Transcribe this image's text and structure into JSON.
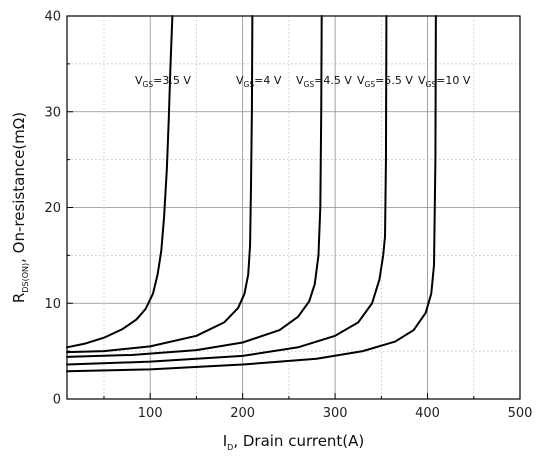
{
  "chart_data": {
    "type": "line",
    "xlabel": {
      "main": "I",
      "sub": "D",
      "rest": ", Drain current(A)"
    },
    "ylabel": {
      "main": "R",
      "sub": "DS(ON)",
      "rest": ", On-resistance(mΩ)"
    },
    "xlim": [
      10,
      500
    ],
    "ylim": [
      0,
      40
    ],
    "x_ticks": [
      100,
      200,
      300,
      400,
      500
    ],
    "x_tick_labels": [
      "100",
      "200",
      "300",
      "400",
      "500"
    ],
    "x_minor_ticks": [
      50,
      150,
      250,
      350,
      450
    ],
    "y_ticks": [
      0,
      10,
      20,
      30,
      40
    ],
    "y_tick_labels": [
      "0",
      "10",
      "20",
      "30",
      "40"
    ],
    "y_minor_ticks": [
      5,
      15,
      25,
      35
    ],
    "grid": true,
    "series": [
      {
        "name": "V_GS=3.5 V",
        "label": {
          "main": "V",
          "sub": "GS",
          "rest": "=3.5 V"
        },
        "x": [
          10,
          30,
          50,
          70,
          85,
          95,
          103,
          108,
          112,
          115,
          118,
          120,
          122,
          124
        ],
        "y": [
          5.4,
          5.8,
          6.4,
          7.3,
          8.3,
          9.4,
          11,
          13,
          15.5,
          19,
          24,
          29,
          35,
          40
        ]
      },
      {
        "name": "V_GS=4 V",
        "label": {
          "main": "V",
          "sub": "GS",
          "rest": "=4 V"
        },
        "x": [
          10,
          50,
          100,
          150,
          180,
          195,
          202,
          206,
          208,
          209,
          210,
          210.5
        ],
        "y": [
          4.9,
          5.0,
          5.5,
          6.6,
          8.0,
          9.5,
          11,
          13,
          16,
          22,
          30,
          40
        ]
      },
      {
        "name": "V_GS=4.5 V",
        "label": {
          "main": "V",
          "sub": "GS",
          "rest": "=4.5 V"
        },
        "x": [
          10,
          80,
          150,
          200,
          240,
          260,
          272,
          278,
          282,
          284,
          285,
          285.5
        ],
        "y": [
          4.4,
          4.6,
          5.1,
          5.9,
          7.2,
          8.6,
          10.2,
          12,
          15,
          20,
          30,
          40
        ]
      },
      {
        "name": "V_GS=5.5 V",
        "label": {
          "main": "V",
          "sub": "GS",
          "rest": "=5.5 V"
        },
        "x": [
          10,
          100,
          200,
          260,
          300,
          325,
          340,
          348,
          352,
          354,
          355,
          355.5
        ],
        "y": [
          3.6,
          3.9,
          4.5,
          5.4,
          6.6,
          8.0,
          10,
          12.5,
          15,
          17,
          25,
          40
        ]
      },
      {
        "name": "V_GS=10 V",
        "label": {
          "main": "V",
          "sub": "GS",
          "rest": "=10 V"
        },
        "x": [
          10,
          100,
          200,
          280,
          330,
          365,
          385,
          398,
          404,
          407,
          408.5,
          409
        ],
        "y": [
          2.9,
          3.1,
          3.6,
          4.2,
          5.0,
          6.0,
          7.2,
          9.0,
          11,
          14,
          25,
          40
        ]
      }
    ]
  }
}
